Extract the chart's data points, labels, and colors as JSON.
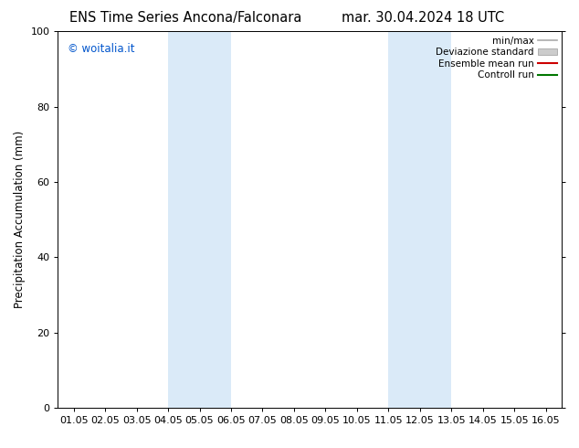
{
  "title_left": "ENS Time Series Ancona/Falconara",
  "title_right": "mar. 30.04.2024 18 UTC",
  "ylabel": "Precipitation Accumulation (mm)",
  "watermark": "© woitalia.it",
  "watermark_color": "#0055cc",
  "xlim": [
    0.5,
    16.5
  ],
  "ylim": [
    0,
    100
  ],
  "yticks": [
    0,
    20,
    40,
    60,
    80,
    100
  ],
  "xtick_positions": [
    1,
    2,
    3,
    4,
    5,
    6,
    7,
    8,
    9,
    10,
    11,
    12,
    13,
    14,
    15,
    16
  ],
  "xtick_labels": [
    "01.05",
    "02.05",
    "03.05",
    "04.05",
    "05.05",
    "06.05",
    "07.05",
    "08.05",
    "09.05",
    "10.05",
    "11.05",
    "12.05",
    "13.05",
    "14.05",
    "15.05",
    "16.05"
  ],
  "shaded_regions": [
    {
      "x_start": 4.0,
      "x_end": 6.0
    },
    {
      "x_start": 11.0,
      "x_end": 13.0
    }
  ],
  "shaded_color": "#daeaf8",
  "legend_entries": [
    {
      "label": "min/max",
      "color": "#aaaaaa",
      "lw": 1.2,
      "type": "line"
    },
    {
      "label": "Deviazione standard",
      "color": "#cccccc",
      "lw": 5,
      "type": "patch"
    },
    {
      "label": "Ensemble mean run",
      "color": "#cc0000",
      "lw": 1.5,
      "type": "line"
    },
    {
      "label": "Controll run",
      "color": "#007700",
      "lw": 1.5,
      "type": "line"
    }
  ],
  "bg_color": "#ffffff",
  "title_fontsize": 10.5,
  "ylabel_fontsize": 8.5,
  "tick_fontsize": 8,
  "legend_fontsize": 7.5,
  "watermark_fontsize": 8.5
}
